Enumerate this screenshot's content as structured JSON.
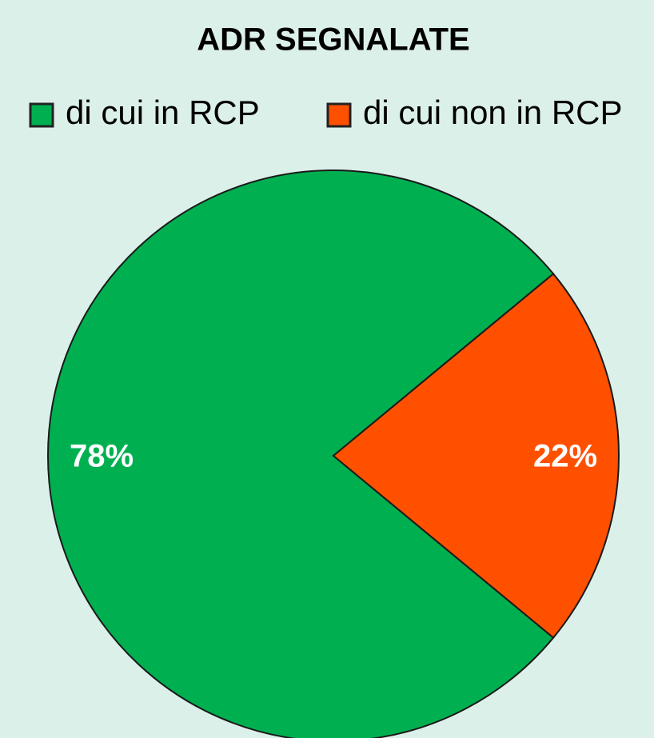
{
  "chart_data": {
    "type": "pie",
    "title": "ADR SEGNALATE",
    "categories": [
      "di cui in RCP",
      "di cui non in RCP"
    ],
    "values": [
      78,
      22
    ],
    "value_labels": [
      "78%",
      "22%"
    ],
    "colors": [
      "#00b050",
      "#ff5000"
    ],
    "legend": "top"
  }
}
